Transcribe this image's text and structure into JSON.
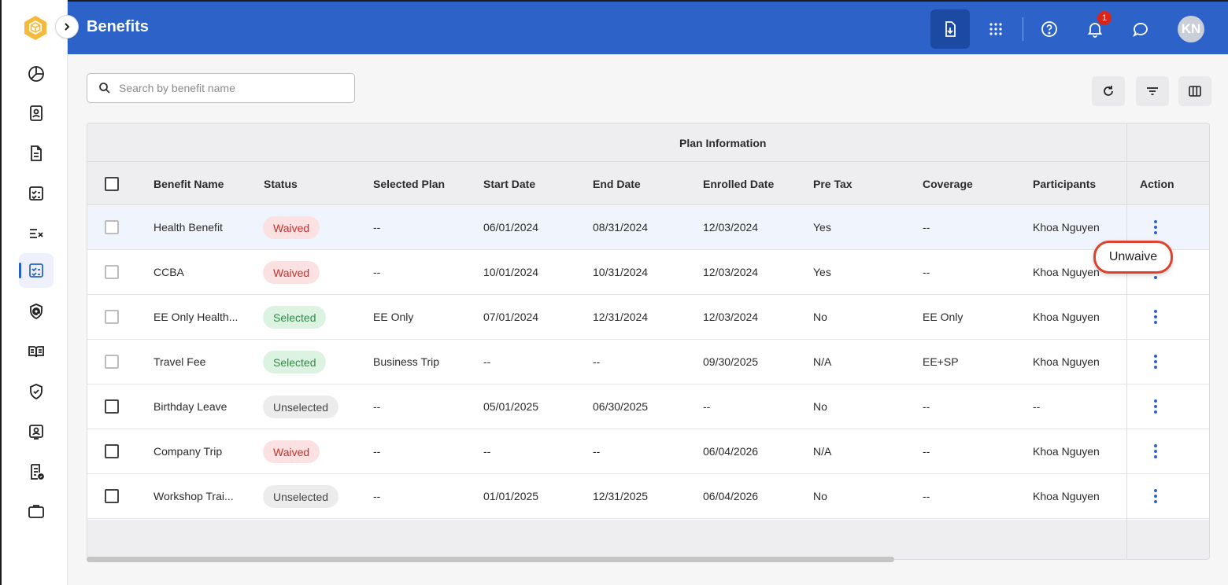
{
  "header": {
    "title": "Benefits",
    "avatar_initials": "KN",
    "notification_count": "1"
  },
  "search": {
    "placeholder": "Search by benefit name"
  },
  "table": {
    "group_label": "Plan Information",
    "columns": [
      "Benefit Name",
      "Status",
      "Selected Plan",
      "Start Date",
      "End Date",
      "Enrolled Date",
      "Pre Tax",
      "Coverage",
      "Participants",
      "Action"
    ],
    "rows": [
      {
        "name": "Health Benefit",
        "status": "Waived",
        "plan": "--",
        "start": "06/01/2024",
        "end": "08/31/2024",
        "enrolled": "12/03/2024",
        "pretax": "Yes",
        "coverage": "--",
        "participants": "Khoa Nguyen"
      },
      {
        "name": "CCBA",
        "status": "Waived",
        "plan": "--",
        "start": "10/01/2024",
        "end": "10/31/2024",
        "enrolled": "12/03/2024",
        "pretax": "Yes",
        "coverage": "--",
        "participants": "Khoa Nguyen"
      },
      {
        "name": "EE Only Health...",
        "status": "Selected",
        "plan": "EE Only",
        "start": "07/01/2024",
        "end": "12/31/2024",
        "enrolled": "12/03/2024",
        "pretax": "No",
        "coverage": "EE Only",
        "participants": "Khoa Nguyen"
      },
      {
        "name": "Travel Fee",
        "status": "Selected",
        "plan": "Business Trip",
        "start": "--",
        "end": "--",
        "enrolled": "09/30/2025",
        "pretax": "N/A",
        "coverage": "EE+SP",
        "participants": "Khoa Nguyen"
      },
      {
        "name": "Birthday Leave",
        "status": "Unselected",
        "plan": "--",
        "start": "05/01/2025",
        "end": "06/30/2025",
        "enrolled": "--",
        "pretax": "No",
        "coverage": "--",
        "participants": "--"
      },
      {
        "name": "Company Trip",
        "status": "Waived",
        "plan": "--",
        "start": "--",
        "end": "--",
        "enrolled": "06/04/2026",
        "pretax": "N/A",
        "coverage": "--",
        "participants": "Khoa Nguyen"
      },
      {
        "name": "Workshop Trai...",
        "status": "Unselected",
        "plan": "--",
        "start": "01/01/2025",
        "end": "12/31/2025",
        "enrolled": "06/04/2026",
        "pretax": "No",
        "coverage": "--",
        "participants": "Khoa Nguyen"
      }
    ]
  },
  "popup": {
    "label": "Unwaive"
  },
  "colors": {
    "header": "#2d63c9",
    "waived": "#c9302c",
    "selected": "#2e8b47",
    "highlight": "#e0412e"
  }
}
